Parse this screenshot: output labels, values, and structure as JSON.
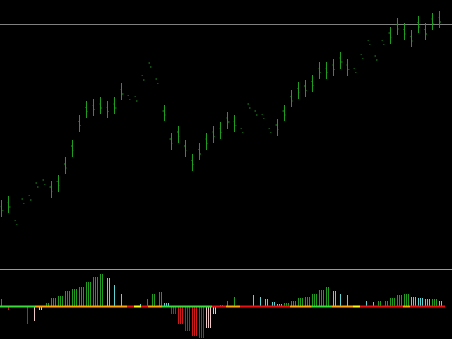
{
  "chart_data": [
    {
      "type": "range_bar",
      "color": "#1f9d1f",
      "ylim": [
        0,
        380
      ],
      "level": 346,
      "level_color": "#808080",
      "high": [
        97,
        102,
        77,
        107,
        112,
        130,
        134,
        124,
        132,
        157,
        182,
        217,
        237,
        240,
        242,
        237,
        242,
        262,
        254,
        252,
        282,
        300,
        277,
        232,
        192,
        202,
        182,
        162,
        177,
        192,
        202,
        207,
        222,
        217,
        207,
        242,
        232,
        227,
        207,
        212,
        232,
        252,
        264,
        267,
        274,
        292,
        292,
        297,
        307,
        297,
        292,
        312,
        332,
        310,
        332,
        342,
        354,
        347,
        337,
        357,
        347,
        362,
        364
      ],
      "low": [
        73,
        78,
        53,
        83,
        88,
        106,
        110,
        100,
        108,
        133,
        158,
        193,
        213,
        216,
        218,
        213,
        218,
        238,
        230,
        228,
        258,
        276,
        253,
        208,
        168,
        178,
        158,
        138,
        153,
        168,
        178,
        183,
        198,
        193,
        183,
        218,
        208,
        203,
        183,
        188,
        208,
        228,
        240,
        243,
        250,
        268,
        268,
        273,
        283,
        273,
        268,
        288,
        308,
        286,
        308,
        318,
        330,
        323,
        313,
        333,
        323,
        338,
        340
      ]
    },
    {
      "type": "bar",
      "ylim": [
        -46,
        52
      ],
      "palette": {
        "up_rising": "#1f9d1f",
        "up_falling": "#5fd3d3",
        "down_falling": "#d01818",
        "down_rising": "#f0c8c8"
      },
      "values": [
        10,
        -5,
        -15,
        -25,
        -20,
        -5,
        5,
        12,
        15,
        22,
        25,
        28,
        35,
        42,
        46,
        40,
        30,
        18,
        8,
        3,
        10,
        18,
        20,
        5,
        -10,
        -25,
        -35,
        -42,
        -44,
        -30,
        -10,
        2,
        8,
        14,
        17,
        16,
        13,
        10,
        6,
        3,
        5,
        8,
        12,
        14,
        18,
        24,
        27,
        22,
        18,
        16,
        14,
        8,
        6,
        8,
        8,
        12,
        16,
        18,
        14,
        12,
        10,
        10,
        8
      ],
      "state_colors": [
        "#3adb3a",
        "#3adb3a",
        "#3adb3a",
        "#3adb3a",
        "#3adb3a",
        "#ffa500",
        "#ffa500",
        "#ffa500",
        "#ffa500",
        "#ffa500",
        "#ffa500",
        "#ffa500",
        "#ffa500",
        "#ffa500",
        "#ffa500",
        "#ffa500",
        "#ffa500",
        "#ffa500",
        "#e81010",
        "#ffff00",
        "#e81010",
        "#ffa500",
        "#ffa500",
        "#3adb3a",
        "#3adb3a",
        "#3adb3a",
        "#3adb3a",
        "#3adb3a",
        "#3adb3a",
        "#3adb3a",
        "#e81010",
        "#e81010",
        "#ffa500",
        "#ffa500",
        "#e81010",
        "#e81010",
        "#e81010",
        "#e81010",
        "#e81010",
        "#e81010",
        "#e81010",
        "#ffa500",
        "#ffa500",
        "#ffa500",
        "#3adb3a",
        "#3adb3a",
        "#3adb3a",
        "#ffa500",
        "#ffa500",
        "#ffa500",
        "#ffff00",
        "#e81010",
        "#e81010",
        "#e81010",
        "#e81010",
        "#e81010",
        "#e81010",
        "#ffa500",
        "#e81010",
        "#e81010",
        "#e81010",
        "#e81010",
        "#e81010"
      ]
    }
  ]
}
